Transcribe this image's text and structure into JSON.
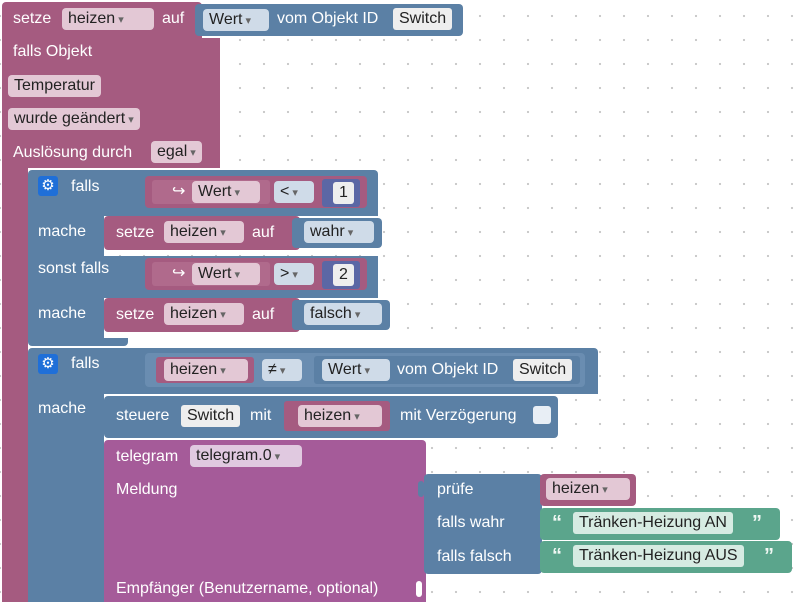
{
  "top": {
    "setze": "setze",
    "var": "heizen",
    "auf": "auf",
    "wert": "Wert",
    "vom_objekt": "vom Objekt ID",
    "object_id": "Switch"
  },
  "trigger": {
    "falls_objekt": "falls Objekt",
    "object": "Temperatur",
    "condition": "wurde geändert",
    "ausloesung_label": "Auslösung durch",
    "ausloesung_value": "egal"
  },
  "if1": {
    "falls": "falls",
    "cond1_arrow": "↪",
    "cond1_var": "Wert",
    "cond1_op": "<",
    "cond1_num": "1",
    "mache": "mache",
    "set1_setze": "setze",
    "set1_var": "heizen",
    "set1_auf": "auf",
    "set1_value": "wahr",
    "sonst_falls": "sonst falls",
    "cond2_arrow": "↪",
    "cond2_var": "Wert",
    "cond2_op": ">",
    "cond2_num": "2",
    "mache2": "mache",
    "set2_setze": "setze",
    "set2_var": "heizen",
    "set2_auf": "auf",
    "set2_value": "falsch"
  },
  "if2": {
    "falls": "falls",
    "cond_var": "heizen",
    "cond_op": "≠",
    "cond_wert": "Wert",
    "cond_vom_objekt": "vom Objekt ID",
    "cond_object_id": "Switch",
    "mache": "mache",
    "steuere": "steuere",
    "steuere_obj": "Switch",
    "mit": "mit",
    "steuere_var": "heizen",
    "mit_verzoegerung": "mit Verzögerung",
    "telegram_label": "telegram",
    "telegram_instance": "telegram.0",
    "meldung": "Meldung",
    "pruefe": "prüfe",
    "pruefe_var": "heizen",
    "falls_wahr": "falls wahr",
    "text_an": "Tränken-Heizung AN",
    "falls_falsch": "falls falsch",
    "text_aus": "Tränken-Heizung AUS",
    "empfaenger": "Empfänger (Benutzername, optional)"
  },
  "colors": {
    "event_block": "#a55b80",
    "logic_block": "#5b80a5",
    "telegram_block": "#a55b99",
    "text_block": "#5ba58c",
    "number_block": "#5b67a5",
    "gear_icon": "#1f6fd8"
  }
}
